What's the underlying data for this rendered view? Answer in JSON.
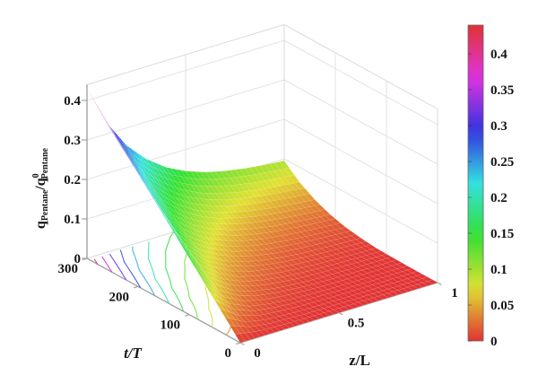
{
  "figure": {
    "kind": "3D surface plot with colorbar",
    "background": "#ffffff"
  },
  "axes": {
    "x": {
      "label": "z/L",
      "tick_labels": [
        "0",
        "0.5",
        "1"
      ],
      "tick_values": [
        0,
        0.5,
        1
      ],
      "range": [
        0,
        1
      ]
    },
    "y": {
      "label": "t/T",
      "tick_labels": [
        "0",
        "100",
        "200",
        "300"
      ],
      "tick_values": [
        0,
        100,
        200,
        300
      ],
      "range": [
        0,
        300
      ]
    },
    "z": {
      "label_plain": "qPentane/q0Pentane",
      "label_parts": {
        "num_base": "q",
        "num_sub": "Pentane",
        "divider": "/",
        "den_base": "q",
        "den_sup": "0",
        "den_sub": "Pentane"
      },
      "tick_labels": [
        "0",
        "0.1",
        "0.2",
        "0.3",
        "0.4"
      ],
      "tick_values": [
        0,
        0.1,
        0.2,
        0.3,
        0.4
      ],
      "range": [
        0,
        0.44
      ]
    }
  },
  "colorbar": {
    "tick_labels": [
      "0",
      "0.05",
      "0.1",
      "0.15",
      "0.2",
      "0.25",
      "0.3",
      "0.35",
      "0.4"
    ],
    "tick_values": [
      0,
      0.05,
      0.1,
      0.15,
      0.2,
      0.25,
      0.3,
      0.35,
      0.4
    ],
    "range": [
      0,
      0.44
    ],
    "colormap": "hsv"
  },
  "chart_data": {
    "type": "surface",
    "title": "",
    "xlabel": "z/L",
    "ylabel": "t/T",
    "zlabel": "qPentane/q0Pentane",
    "colormap": "hsv",
    "clim": [
      0,
      0.44
    ],
    "grid": true,
    "x_zL": [
      0,
      0.1,
      0.2,
      0.3,
      0.4,
      0.5,
      0.6,
      0.7,
      0.8,
      0.9,
      1.0
    ],
    "y_tT": [
      0,
      30,
      60,
      90,
      120,
      150,
      180,
      210,
      240,
      270,
      300
    ],
    "q_over_q0_rows_are_zL_cols_are_tT": [
      [
        0,
        0.043,
        0.086,
        0.129,
        0.172,
        0.215,
        0.258,
        0.301,
        0.344,
        0.387,
        0.43
      ],
      [
        0,
        0.016,
        0.041,
        0.069,
        0.1,
        0.133,
        0.169,
        0.206,
        0.245,
        0.286,
        0.328
      ],
      [
        0,
        0.006,
        0.019,
        0.037,
        0.059,
        0.084,
        0.113,
        0.145,
        0.179,
        0.216,
        0.256
      ],
      [
        0,
        0.003,
        0.01,
        0.021,
        0.036,
        0.055,
        0.078,
        0.105,
        0.135,
        0.169,
        0.206
      ],
      [
        0,
        0.001,
        0.005,
        0.012,
        0.023,
        0.037,
        0.055,
        0.078,
        0.104,
        0.135,
        0.17
      ],
      [
        0,
        0.0005,
        0.003,
        0.007,
        0.015,
        0.026,
        0.04,
        0.059,
        0.083,
        0.111,
        0.145
      ],
      [
        0,
        0,
        0.001,
        0.004,
        0.01,
        0.018,
        0.03,
        0.047,
        0.068,
        0.095,
        0.127
      ],
      [
        0,
        0,
        0.001,
        0.003,
        0.007,
        0.013,
        0.024,
        0.038,
        0.058,
        0.083,
        0.115
      ],
      [
        0,
        0,
        0,
        0.002,
        0.005,
        0.01,
        0.019,
        0.032,
        0.05,
        0.074,
        0.106
      ],
      [
        0,
        0,
        0,
        0.001,
        0.003,
        0.008,
        0.015,
        0.027,
        0.044,
        0.068,
        0.1
      ],
      [
        0,
        0,
        0,
        0.001,
        0.002,
        0.006,
        0.012,
        0.023,
        0.039,
        0.062,
        0.095
      ]
    ],
    "floor_contour_levels": [
      0.04,
      0.08,
      0.12,
      0.16,
      0.2,
      0.24,
      0.28,
      0.32,
      0.36,
      0.4
    ]
  },
  "style_colors": {
    "grid_line": "#e3e3e3",
    "box_edge": "#dadada",
    "axis_line": "#a3a3a3",
    "tick_text": "#141414",
    "surface_mesh_line": "rgba(255,255,255,0.17)",
    "colorbar_border": "#666666"
  }
}
